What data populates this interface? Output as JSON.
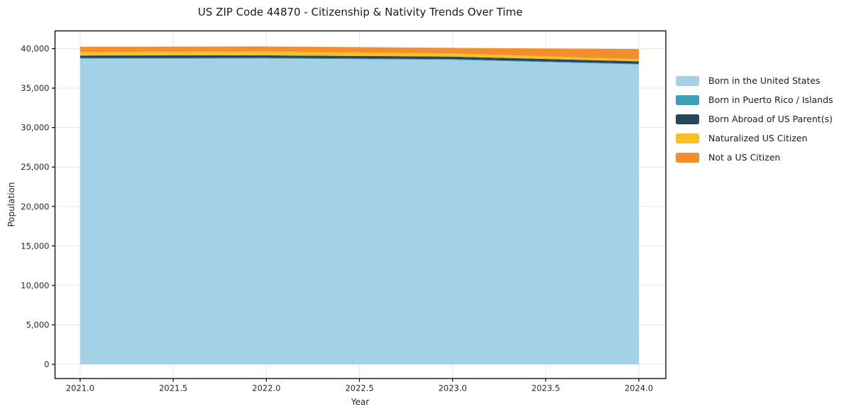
{
  "title": "US ZIP Code 44870 - Citizenship & Nativity Trends Over Time",
  "chart_data": {
    "type": "area",
    "stacked": true,
    "title": "US ZIP Code 44870 - Citizenship & Nativity Trends Over Time",
    "xlabel": "Year",
    "ylabel": "Population",
    "x": [
      2021,
      2022,
      2023,
      2024
    ],
    "series": [
      {
        "name": "Born in the United States",
        "color": "#a5d1e6",
        "values": [
          38740,
          38750,
          38580,
          38000
        ]
      },
      {
        "name": "Born in Puerto Rico / Islands",
        "color": "#3ca0bd",
        "values": [
          90,
          90,
          90,
          90
        ]
      },
      {
        "name": "Born Abroad of US Parent(s)",
        "color": "#26485c",
        "values": [
          300,
          310,
          320,
          300
        ]
      },
      {
        "name": "Naturalized US Citizen",
        "color": "#fcbd2a",
        "values": [
          450,
          500,
          400,
          280
        ]
      },
      {
        "name": "Not a US Citizen",
        "color": "#f28f2c",
        "values": [
          650,
          625,
          710,
          1280
        ]
      }
    ],
    "totals": [
      40230,
      40275,
      40100,
      39950
    ],
    "xticks": {
      "values": [
        2021.0,
        2021.5,
        2022.0,
        2022.5,
        2023.0,
        2023.5,
        2024.0
      ],
      "labels": [
        "2021.0",
        "2021.5",
        "2022.0",
        "2022.5",
        "2023.0",
        "2023.5",
        "2024.0"
      ]
    },
    "yticks": {
      "values": [
        0,
        5000,
        10000,
        15000,
        20000,
        25000,
        30000,
        35000,
        40000
      ],
      "labels": [
        "0",
        "5,000",
        "10,000",
        "15,000",
        "20,000",
        "25,000",
        "30,000",
        "35,000",
        "40,000"
      ]
    },
    "xlim": [
      2020.865,
      2024.145
    ],
    "ylim": [
      -1800,
      42250
    ],
    "grid": true,
    "legend_position": "right"
  },
  "style": {
    "grid_color": "#e7e7e7",
    "spine_color": "#000000",
    "tick_color": "#000000",
    "text_color": "#262626",
    "background": "#ffffff"
  }
}
